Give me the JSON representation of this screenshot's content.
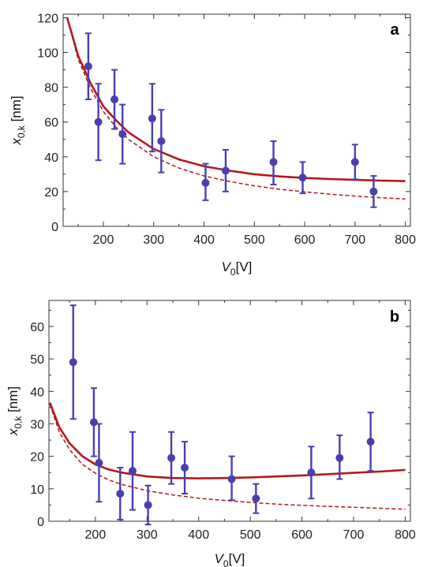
{
  "chart_data": [
    {
      "type": "scatter",
      "panel_label": "a",
      "xlabel": "V0[V]",
      "ylabel": "x0,k [nm]",
      "xlim": [
        120,
        810
      ],
      "ylim": [
        0,
        122
      ],
      "xticks": [
        200,
        300,
        400,
        500,
        600,
        700,
        800
      ],
      "yticks": [
        0,
        20,
        40,
        60,
        80,
        100,
        120
      ],
      "grid": false,
      "points": [
        {
          "x": 170,
          "y": 92,
          "err_low": 19,
          "err_high": 19
        },
        {
          "x": 190,
          "y": 60,
          "err_low": 22,
          "err_high": 22
        },
        {
          "x": 222,
          "y": 73,
          "err_low": 17,
          "err_high": 17
        },
        {
          "x": 238,
          "y": 53,
          "err_low": 17,
          "err_high": 17
        },
        {
          "x": 297,
          "y": 62,
          "err_low": 19,
          "err_high": 20
        },
        {
          "x": 315,
          "y": 49,
          "err_low": 18,
          "err_high": 18
        },
        {
          "x": 403,
          "y": 25,
          "err_low": 10,
          "err_high": 11
        },
        {
          "x": 443,
          "y": 32,
          "err_low": 12,
          "err_high": 12
        },
        {
          "x": 538,
          "y": 37,
          "err_low": 13,
          "err_high": 12
        },
        {
          "x": 596,
          "y": 28,
          "err_low": 9,
          "err_high": 9
        },
        {
          "x": 700,
          "y": 37,
          "err_low": 10,
          "err_high": 10
        },
        {
          "x": 737,
          "y": 20,
          "err_low": 9,
          "err_high": 9
        }
      ],
      "series": [
        {
          "style": "solid",
          "color": "#b3191c",
          "x": [
            128,
            150,
            175,
            200,
            225,
            250,
            300,
            350,
            400,
            450,
            500,
            550,
            600,
            650,
            700,
            750,
            800
          ],
          "y": [
            120,
            98,
            82,
            69,
            61,
            54,
            44.5,
            38.5,
            34.5,
            32,
            30,
            28.7,
            27.8,
            27.2,
            26.7,
            26.3,
            26
          ]
        },
        {
          "style": "dashed",
          "color": "#b3191c",
          "x": [
            128,
            150,
            175,
            200,
            225,
            250,
            300,
            350,
            400,
            450,
            500,
            550,
            600,
            650,
            700,
            750,
            800
          ],
          "y": [
            120,
            96,
            79,
            66,
            57,
            50,
            40,
            33.5,
            29,
            25.8,
            23.3,
            21.3,
            19.8,
            18.5,
            17.4,
            16.5,
            15.7
          ]
        }
      ],
      "marker_color": "#4a3fb0"
    },
    {
      "type": "scatter",
      "panel_label": "b",
      "xlabel": "V0[V]",
      "ylabel": "x0,k [nm]",
      "xlim": [
        110,
        810
      ],
      "ylim": [
        0,
        68
      ],
      "xticks": [
        200,
        300,
        400,
        500,
        600,
        700,
        800
      ],
      "yticks": [
        0,
        10,
        20,
        30,
        40,
        50,
        60
      ],
      "grid": false,
      "points": [
        {
          "x": 157,
          "y": 49,
          "err_low": 17.5,
          "err_high": 17.5
        },
        {
          "x": 197,
          "y": 30.5,
          "err_low": 10.5,
          "err_high": 10.5
        },
        {
          "x": 207,
          "y": 18,
          "err_low": 12,
          "err_high": 12
        },
        {
          "x": 248,
          "y": 8.5,
          "err_low": 8,
          "err_high": 8
        },
        {
          "x": 272,
          "y": 15.5,
          "err_low": 12,
          "err_high": 12
        },
        {
          "x": 302,
          "y": 5,
          "err_low": 6,
          "err_high": 6
        },
        {
          "x": 347,
          "y": 19.5,
          "err_low": 8,
          "err_high": 8
        },
        {
          "x": 373,
          "y": 16.5,
          "err_low": 8,
          "err_high": 8
        },
        {
          "x": 464,
          "y": 13,
          "err_low": 6.5,
          "err_high": 7
        },
        {
          "x": 511,
          "y": 7,
          "err_low": 4.5,
          "err_high": 4.5
        },
        {
          "x": 618,
          "y": 15,
          "err_low": 8,
          "err_high": 8
        },
        {
          "x": 673,
          "y": 19.5,
          "err_low": 6.5,
          "err_high": 7
        },
        {
          "x": 733,
          "y": 24.5,
          "err_low": 9,
          "err_high": 9
        }
      ],
      "series": [
        {
          "style": "solid",
          "color": "#b3191c",
          "x": [
            112,
            130,
            150,
            175,
            200,
            225,
            250,
            300,
            350,
            400,
            450,
            500,
            550,
            600,
            650,
            700,
            750,
            800
          ],
          "y": [
            36.5,
            29,
            24,
            20,
            17.5,
            16,
            15,
            13.8,
            13.3,
            13.2,
            13.3,
            13.5,
            13.8,
            14.1,
            14.5,
            14.9,
            15.3,
            15.8
          ]
        },
        {
          "style": "dashed",
          "color": "#b3191c",
          "x": [
            112,
            130,
            150,
            175,
            200,
            225,
            250,
            300,
            350,
            400,
            450,
            500,
            550,
            600,
            650,
            700,
            750,
            800
          ],
          "y": [
            36,
            27.5,
            22,
            17.5,
            14.8,
            12.8,
            11.4,
            9.4,
            8.1,
            7.1,
            6.4,
            5.8,
            5.3,
            4.9,
            4.6,
            4.3,
            4.0,
            3.7
          ]
        }
      ],
      "marker_color": "#4a3fb0"
    }
  ]
}
